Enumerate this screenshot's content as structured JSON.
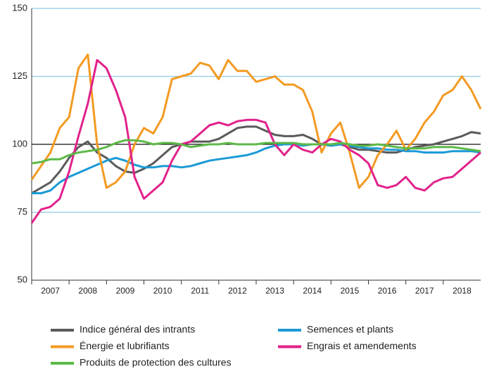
{
  "chart_data": {
    "type": "line",
    "x": [
      2007,
      2007.25,
      2007.5,
      2007.75,
      2008,
      2008.25,
      2008.5,
      2008.75,
      2009,
      2009.25,
      2009.5,
      2009.75,
      2010,
      2010.25,
      2010.5,
      2010.75,
      2011,
      2011.25,
      2011.5,
      2011.75,
      2012,
      2012.25,
      2012.5,
      2012.75,
      2013,
      2013.25,
      2013.5,
      2013.75,
      2014,
      2014.25,
      2014.5,
      2014.75,
      2015,
      2015.25,
      2015.5,
      2015.75,
      2016,
      2016.25,
      2016.5,
      2016.75,
      2017,
      2017.25,
      2017.5,
      2017.75,
      2018,
      2018.25,
      2018.5,
      2018.75,
      2019
    ],
    "series": [
      {
        "name": "Indice général des intrants",
        "color": "#5a5a5a",
        "values": [
          82,
          84,
          86,
          90,
          95,
          99,
          101,
          97,
          95,
          92,
          90,
          89.5,
          91,
          93,
          96,
          99,
          100,
          101,
          101,
          101,
          102,
          104,
          106,
          106.5,
          106.5,
          105,
          103.5,
          103,
          103,
          103.5,
          102,
          100,
          99.5,
          100,
          99,
          98,
          98,
          97.5,
          97,
          97,
          98,
          99,
          99.5,
          100,
          101,
          102,
          103,
          104.5,
          104
        ]
      },
      {
        "name": "Semences et plants",
        "color": "#1b9ad6",
        "values": [
          82,
          82,
          83,
          86,
          88,
          89.5,
          91,
          92.5,
          94,
          95,
          94,
          92.5,
          91.5,
          91.5,
          92,
          92,
          91.5,
          92,
          93,
          94,
          94.5,
          95,
          95.5,
          96,
          97,
          98.5,
          99.5,
          100,
          100,
          99.5,
          100,
          100,
          99.5,
          100,
          99.5,
          99,
          98.5,
          98.5,
          98,
          98,
          97.5,
          97.5,
          97,
          97,
          97,
          97.5,
          97.5,
          97.5,
          97
        ]
      },
      {
        "name": "Énergie et lubrifiants",
        "color": "#f39a22",
        "values": [
          87,
          92,
          97,
          106,
          110,
          128,
          133,
          100,
          84,
          86,
          90,
          100,
          106,
          104,
          110,
          124,
          125,
          126,
          130,
          129,
          124,
          131,
          127,
          127,
          123,
          124,
          125,
          122,
          122,
          120,
          112,
          97,
          104,
          108,
          97,
          84,
          88,
          96,
          100,
          105,
          98,
          102,
          108,
          112,
          118,
          120,
          125,
          120,
          113
        ]
      },
      {
        "name": "Engrais et amendements",
        "color": "#e1228b",
        "values": [
          71,
          76,
          77,
          80,
          90,
          103,
          115,
          131,
          128,
          120,
          110,
          88,
          80,
          83,
          86,
          94,
          100,
          101,
          104,
          107,
          108,
          107,
          108.5,
          109,
          109,
          108,
          100,
          96,
          100,
          98,
          97,
          100,
          102,
          101,
          98,
          96,
          93,
          85,
          84,
          85,
          88,
          84,
          83,
          86,
          87.5,
          88,
          91,
          94,
          97
        ]
      },
      {
        "name": "Produits de protection des cultures",
        "color": "#5cb947",
        "values": [
          93,
          93.5,
          94.5,
          94.5,
          96,
          97,
          97.5,
          98,
          99,
          100.5,
          101.5,
          101.5,
          101,
          100,
          100.5,
          100.5,
          100,
          99,
          99.5,
          100,
          100,
          100.5,
          100,
          100,
          100,
          100.5,
          100.5,
          100.5,
          100.5,
          100,
          100,
          100,
          100,
          100.5,
          100,
          99.5,
          99.5,
          100,
          99.5,
          99,
          98.5,
          98.5,
          98.5,
          99,
          99,
          99,
          98.5,
          98,
          97.5
        ]
      }
    ],
    "xlim": [
      2007,
      2019
    ],
    "xticks": [
      2007,
      2008,
      2009,
      2010,
      2011,
      2012,
      2013,
      2014,
      2015,
      2016,
      2017,
      2018
    ],
    "ylim": [
      50,
      150
    ],
    "yticks": [
      50,
      75,
      100,
      125,
      150
    ],
    "reference_line": 100,
    "grid": true,
    "grid_color": "#8fcbe6"
  }
}
